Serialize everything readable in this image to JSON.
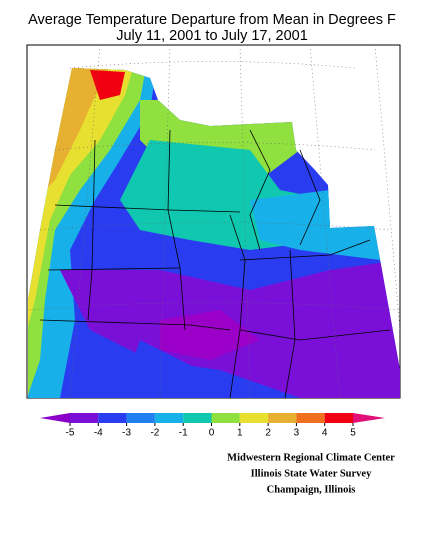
{
  "title": [
    "Average Temperature Departure from Mean in Degrees F",
    "July 11, 2001  to July 17, 2001"
  ],
  "legend": {
    "ticks": [
      -5,
      -4,
      -3,
      -2,
      -1,
      0,
      1,
      2,
      3,
      4,
      5
    ],
    "colors": [
      "#7a10d8",
      "#2a3cf0",
      "#2080f0",
      "#18b0e8",
      "#10c8b0",
      "#90e040",
      "#e8e030",
      "#e8b030",
      "#f07020",
      "#f00010"
    ],
    "under_color": "#8a00c8",
    "over_color": "#e01078"
  },
  "credits": [
    "Midwestern Regional Climate Center",
    "Illinois State Water Survey",
    "Champaign, Illinois"
  ]
}
